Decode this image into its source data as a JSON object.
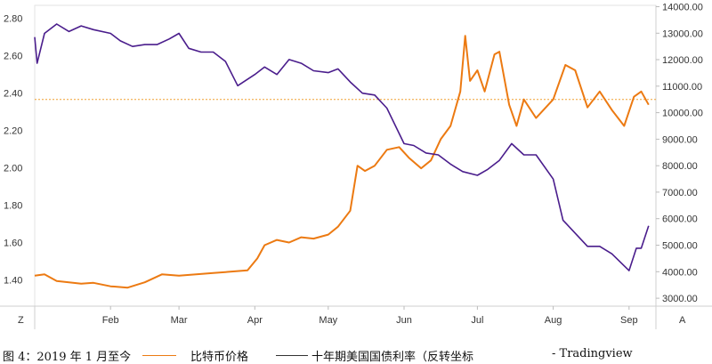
{
  "chart_data": {
    "type": "line",
    "x_axis": {
      "ticks": [
        "Feb",
        "Mar",
        "Apr",
        "May",
        "Jun",
        "Jul",
        "Aug",
        "Sep"
      ],
      "left_corner": "Z",
      "right_corner": "A"
    },
    "left_axis": {
      "ticks": [
        "1.40",
        "1.60",
        "1.80",
        "2.00",
        "2.20",
        "2.40",
        "2.60",
        "2.80"
      ],
      "range": [
        2.87,
        1.26
      ],
      "inverted": true
    },
    "right_axis": {
      "ticks": [
        "3000.00",
        "4000.00",
        "5000.00",
        "6000.00",
        "7000.00",
        "8000.00",
        "9000.00",
        "10000.00",
        "11000.00",
        "12000.00",
        "13000.00",
        "14000.00"
      ],
      "range": [
        2700,
        14050
      ]
    },
    "reference_line": {
      "value": 10500,
      "axis": "right",
      "color": "#f0a030",
      "style": "dotted"
    },
    "series": [
      {
        "name": "比特币价格",
        "axis": "right",
        "color": "#ec7a12",
        "x": [
          "2019-01-01",
          "2019-01-05",
          "2019-01-10",
          "2019-01-15",
          "2019-01-20",
          "2019-01-25",
          "2019-02-01",
          "2019-02-08",
          "2019-02-15",
          "2019-02-22",
          "2019-03-01",
          "2019-03-08",
          "2019-03-15",
          "2019-03-22",
          "2019-03-29",
          "2019-04-02",
          "2019-04-05",
          "2019-04-10",
          "2019-04-15",
          "2019-04-20",
          "2019-04-25",
          "2019-05-01",
          "2019-05-05",
          "2019-05-10",
          "2019-05-13",
          "2019-05-16",
          "2019-05-20",
          "2019-05-25",
          "2019-05-30",
          "2019-06-03",
          "2019-06-08",
          "2019-06-12",
          "2019-06-16",
          "2019-06-20",
          "2019-06-24",
          "2019-06-26",
          "2019-06-28",
          "2019-07-01",
          "2019-07-04",
          "2019-07-08",
          "2019-07-10",
          "2019-07-14",
          "2019-07-17",
          "2019-07-20",
          "2019-07-25",
          "2019-08-01",
          "2019-08-06",
          "2019-08-10",
          "2019-08-15",
          "2019-08-20",
          "2019-08-25",
          "2019-08-30",
          "2019-09-03",
          "2019-09-06",
          "2019-09-09"
        ],
        "values": [
          3850,
          3900,
          3650,
          3600,
          3550,
          3580,
          3450,
          3400,
          3600,
          3900,
          3850,
          3900,
          3950,
          4000,
          4050,
          4500,
          5000,
          5200,
          5100,
          5300,
          5250,
          5400,
          5700,
          6300,
          8000,
          7800,
          8000,
          8600,
          8700,
          8300,
          7900,
          8200,
          9000,
          9500,
          10800,
          12900,
          11200,
          11600,
          10800,
          12200,
          12300,
          10300,
          9500,
          10500,
          9800,
          10500,
          11800,
          11600,
          10200,
          10800,
          10100,
          9500,
          10600,
          10800,
          10300
        ]
      },
      {
        "name": "十年期美国国债利率（反转坐标）",
        "axis": "left",
        "color": "#4a1d8c",
        "x": [
          "2019-01-01",
          "2019-01-02",
          "2019-01-05",
          "2019-01-10",
          "2019-01-15",
          "2019-01-20",
          "2019-01-25",
          "2019-02-01",
          "2019-02-05",
          "2019-02-10",
          "2019-02-15",
          "2019-02-20",
          "2019-02-25",
          "2019-03-01",
          "2019-03-05",
          "2019-03-10",
          "2019-03-15",
          "2019-03-20",
          "2019-03-25",
          "2019-04-01",
          "2019-04-05",
          "2019-04-10",
          "2019-04-15",
          "2019-04-20",
          "2019-04-25",
          "2019-05-01",
          "2019-05-05",
          "2019-05-10",
          "2019-05-15",
          "2019-05-20",
          "2019-05-25",
          "2019-06-01",
          "2019-06-05",
          "2019-06-10",
          "2019-06-15",
          "2019-06-20",
          "2019-06-25",
          "2019-07-01",
          "2019-07-05",
          "2019-07-10",
          "2019-07-15",
          "2019-07-20",
          "2019-07-25",
          "2019-08-01",
          "2019-08-05",
          "2019-08-10",
          "2019-08-15",
          "2019-08-20",
          "2019-08-25",
          "2019-09-01",
          "2019-09-04",
          "2019-09-06",
          "2019-09-09"
        ],
        "values": [
          2.7,
          2.56,
          2.72,
          2.77,
          2.73,
          2.76,
          2.74,
          2.72,
          2.68,
          2.65,
          2.66,
          2.66,
          2.69,
          2.72,
          2.64,
          2.62,
          2.62,
          2.57,
          2.44,
          2.5,
          2.54,
          2.5,
          2.58,
          2.56,
          2.52,
          2.51,
          2.53,
          2.46,
          2.4,
          2.39,
          2.32,
          2.13,
          2.12,
          2.08,
          2.07,
          2.02,
          1.98,
          1.96,
          1.99,
          2.04,
          2.13,
          2.07,
          2.07,
          1.94,
          1.72,
          1.65,
          1.58,
          1.58,
          1.54,
          1.45,
          1.57,
          1.57,
          1.69
        ]
      }
    ]
  },
  "caption": {
    "prefix": "图 4：2019 年 1 月至今",
    "legend_1": "比特币价格",
    "legend_2": "十年期美国国债利率（反转坐标",
    "suffix": "- Tradingview"
  }
}
